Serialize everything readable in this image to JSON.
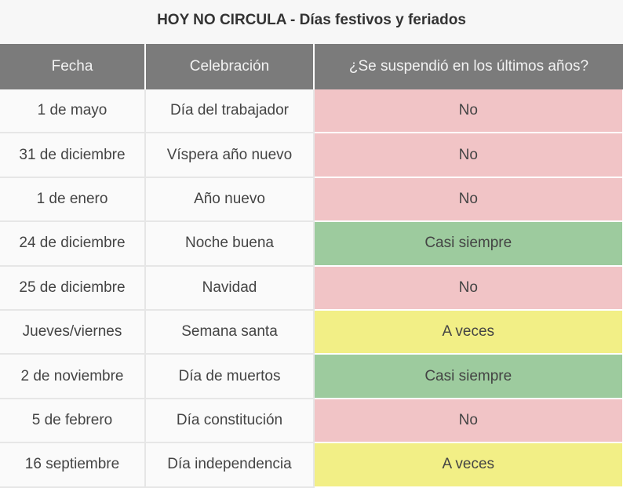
{
  "title": "HOY NO CIRCULA - Días festivos y feriados",
  "headers": [
    "Fecha",
    "Celebración",
    "¿Se suspendió en los últimos años?"
  ],
  "status_colors": {
    "No": "#f1c4c6",
    "Casi siempre": "#9dcb9e",
    "A veces": "#f2ef86"
  },
  "rows": [
    {
      "fecha": "1 de mayo",
      "celebracion": "Día del trabajador",
      "suspendido": "No"
    },
    {
      "fecha": "31 de diciembre",
      "celebracion": "Víspera año nuevo",
      "suspendido": "No"
    },
    {
      "fecha": "1 de enero",
      "celebracion": "Año nuevo",
      "suspendido": "No"
    },
    {
      "fecha": "24 de diciembre",
      "celebracion": "Noche buena",
      "suspendido": "Casi siempre"
    },
    {
      "fecha": "25 de diciembre",
      "celebracion": "Navidad",
      "suspendido": "No"
    },
    {
      "fecha": "Jueves/viernes",
      "celebracion": "Semana santa",
      "suspendido": "A veces"
    },
    {
      "fecha": "2 de noviembre",
      "celebracion": "Día de muertos",
      "suspendido": "Casi siempre"
    },
    {
      "fecha": "5 de febrero",
      "celebracion": "Día constitución",
      "suspendido": "No"
    },
    {
      "fecha": "16 septiembre",
      "celebracion": "Día independencia",
      "suspendido": "A veces"
    }
  ]
}
